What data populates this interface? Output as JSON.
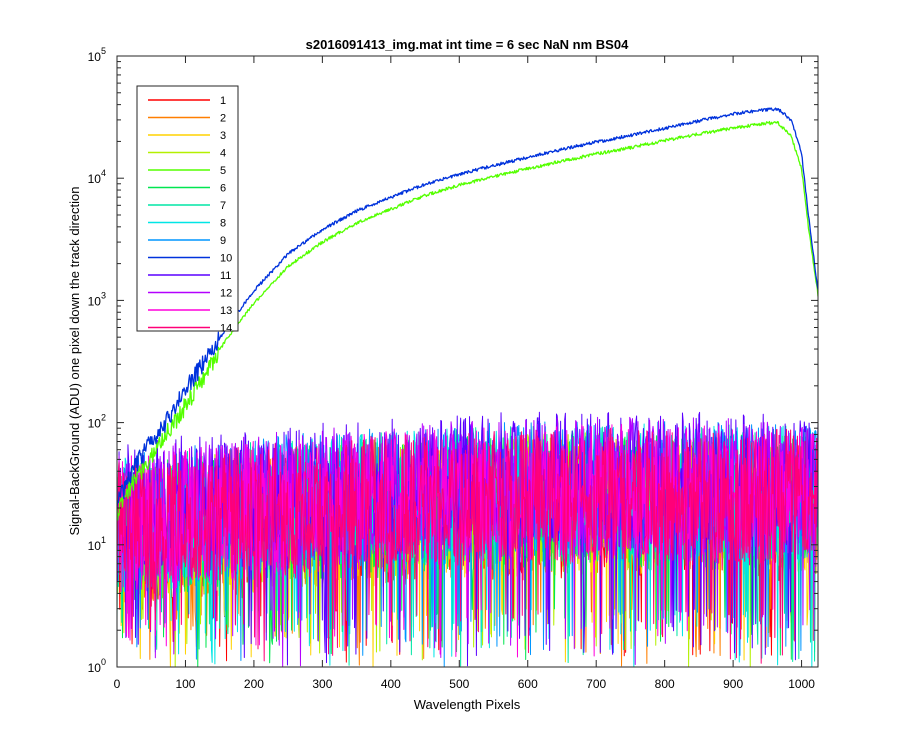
{
  "chart_data": {
    "type": "line",
    "title": "s2016091413_img.mat int time = 6 sec  NaN nm BS04",
    "xlabel": "Wavelength Pixels",
    "ylabel": "Signal-BackGround (ADU) one pixel down the track direction",
    "xlim": [
      0,
      1024
    ],
    "ylim": [
      1,
      100000
    ],
    "yscale": "log",
    "xticks": [
      "0",
      "100",
      "200",
      "300",
      "400",
      "500",
      "600",
      "700",
      "800",
      "900",
      "1000"
    ],
    "yticks": [
      {
        "base": "10",
        "exp": "0"
      },
      {
        "base": "10",
        "exp": "1"
      },
      {
        "base": "10",
        "exp": "2"
      },
      {
        "base": "10",
        "exp": "3"
      },
      {
        "base": "10",
        "exp": "4"
      },
      {
        "base": "10",
        "exp": "5"
      }
    ],
    "grid": false,
    "legend_position": "top-left",
    "series": [
      {
        "name": "1",
        "color": "#ff0000",
        "kind": "noise",
        "level": 10
      },
      {
        "name": "2",
        "color": "#ff7f00",
        "kind": "noise",
        "level": 11
      },
      {
        "name": "3",
        "color": "#ffd200",
        "kind": "noise",
        "level": 11
      },
      {
        "name": "4",
        "color": "#b4f000",
        "kind": "noise",
        "level": 12
      },
      {
        "name": "5",
        "color": "#55ff00",
        "kind": "signal",
        "x": [
          0,
          20,
          40,
          60,
          80,
          100,
          130,
          160,
          200,
          250,
          300,
          350,
          400,
          450,
          500,
          550,
          600,
          650,
          700,
          750,
          800,
          850,
          900,
          950,
          965,
          985,
          1000,
          1010,
          1024
        ],
        "y": [
          18,
          30,
          45,
          65,
          95,
          140,
          260,
          480,
          950,
          1900,
          3000,
          4300,
          5600,
          7200,
          8800,
          10300,
          12000,
          13800,
          15800,
          17800,
          20300,
          23000,
          25800,
          28200,
          28500,
          22000,
          12000,
          4000,
          1100
        ]
      },
      {
        "name": "6",
        "color": "#00e650",
        "kind": "noise",
        "level": 12
      },
      {
        "name": "7",
        "color": "#00e6a5",
        "kind": "noise",
        "level": 14
      },
      {
        "name": "8",
        "color": "#00e6e6",
        "kind": "noise",
        "level": 14
      },
      {
        "name": "9",
        "color": "#0096ff",
        "kind": "noise",
        "level": 15
      },
      {
        "name": "10",
        "color": "#0032dc",
        "kind": "signal",
        "x": [
          0,
          20,
          40,
          60,
          80,
          100,
          130,
          160,
          200,
          250,
          300,
          350,
          400,
          450,
          500,
          550,
          600,
          650,
          700,
          750,
          800,
          850,
          900,
          950,
          965,
          985,
          1000,
          1010,
          1024
        ],
        "y": [
          22,
          38,
          60,
          85,
          120,
          190,
          330,
          600,
          1200,
          2400,
          3800,
          5400,
          7000,
          8900,
          10800,
          12700,
          14800,
          17200,
          19800,
          22400,
          25600,
          29500,
          33500,
          36500,
          37000,
          30000,
          16000,
          5000,
          1200
        ]
      },
      {
        "name": "11",
        "color": "#5a00ff",
        "kind": "noise",
        "level": 18
      },
      {
        "name": "12",
        "color": "#b400ff",
        "kind": "noise",
        "level": 16
      },
      {
        "name": "13",
        "color": "#ff00dc",
        "kind": "noise",
        "level": 14
      },
      {
        "name": "14",
        "color": "#ff0078",
        "kind": "noise",
        "level": 13
      }
    ]
  }
}
